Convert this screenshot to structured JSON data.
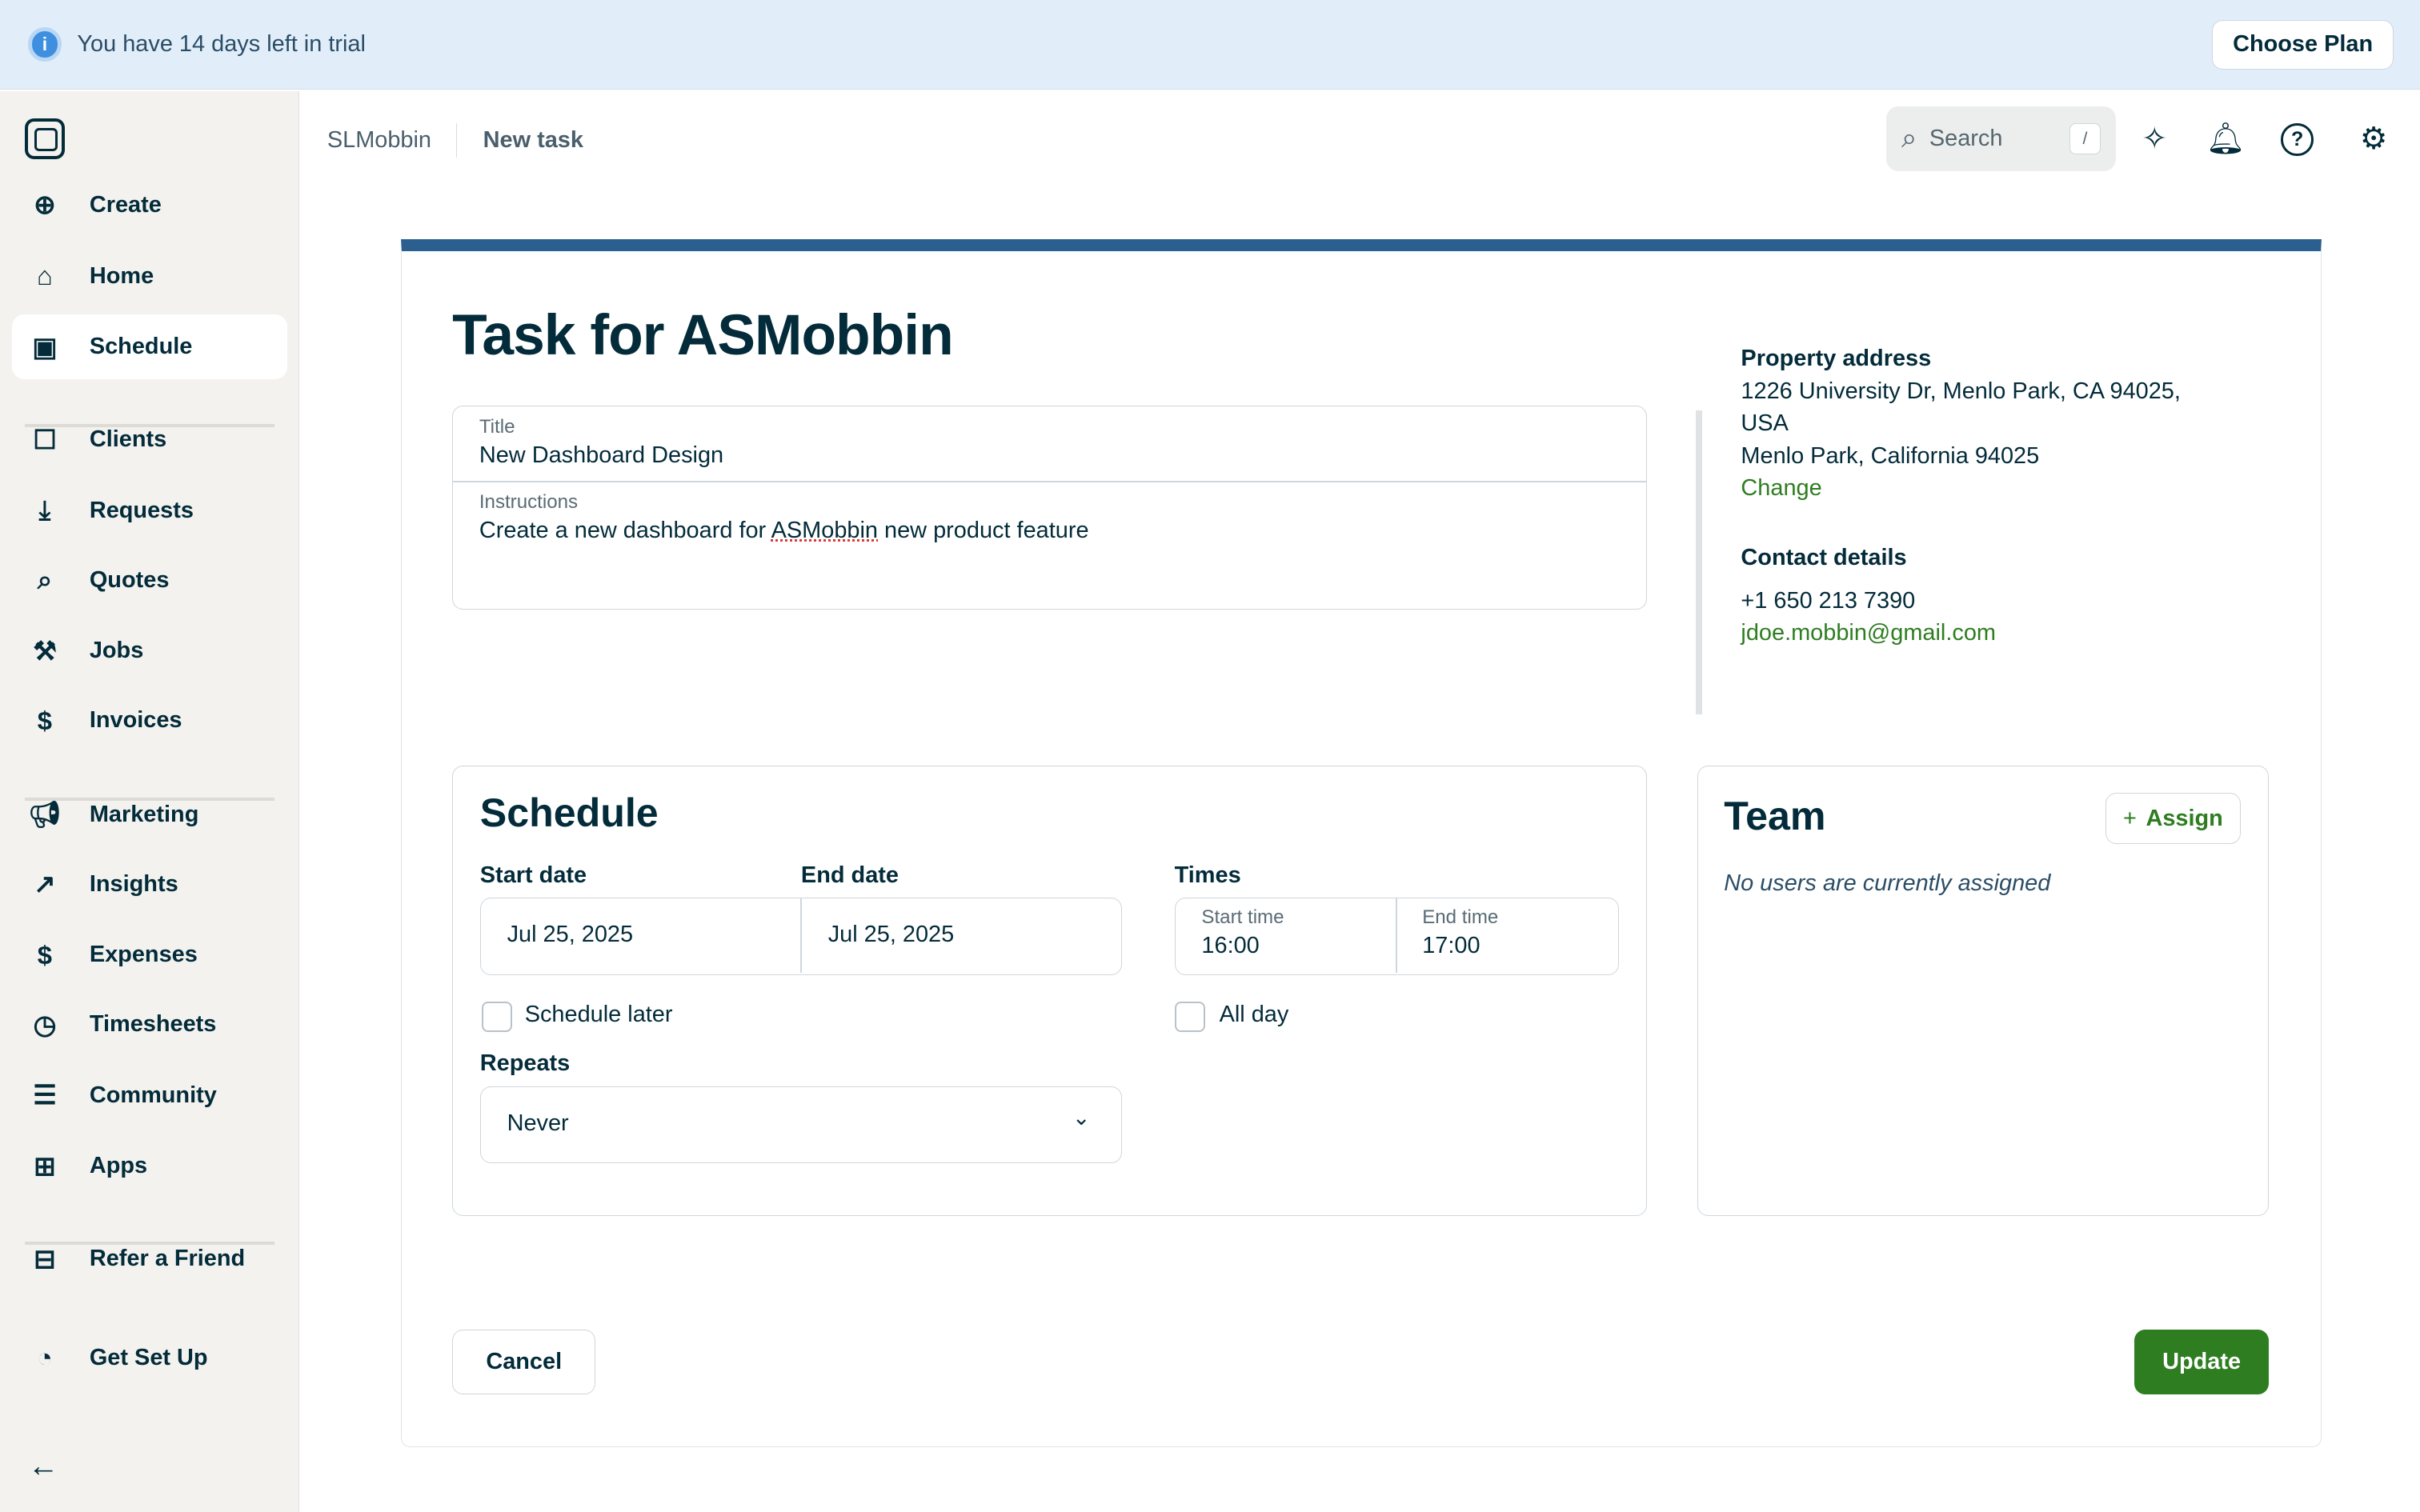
{
  "banner": {
    "text": "You have 14 days left in trial",
    "cta": "Choose Plan"
  },
  "sidebar": {
    "items": [
      {
        "label": "Create",
        "icon": "plus-circle-icon"
      },
      {
        "label": "Home",
        "icon": "home-icon"
      },
      {
        "label": "Schedule",
        "icon": "calendar-icon",
        "active": true
      },
      {
        "label": "Clients",
        "icon": "contact-icon"
      },
      {
        "label": "Requests",
        "icon": "inbox-icon"
      },
      {
        "label": "Quotes",
        "icon": "quote-icon"
      },
      {
        "label": "Jobs",
        "icon": "hammer-icon"
      },
      {
        "label": "Invoices",
        "icon": "invoice-icon"
      },
      {
        "label": "Marketing",
        "icon": "megaphone-icon"
      },
      {
        "label": "Insights",
        "icon": "chart-icon"
      },
      {
        "label": "Expenses",
        "icon": "receipt-icon"
      },
      {
        "label": "Timesheets",
        "icon": "clock-icon"
      },
      {
        "label": "Community",
        "icon": "chat-icon"
      },
      {
        "label": "Apps",
        "icon": "apps-icon"
      },
      {
        "label": "Refer a Friend",
        "icon": "gift-icon"
      },
      {
        "label": "Get Set Up",
        "icon": "progress-icon"
      }
    ]
  },
  "header": {
    "breadcrumb": [
      "SLMobbin",
      "New task"
    ],
    "search_placeholder": "Search",
    "search_shortcut": "/"
  },
  "task": {
    "heading": "Task for ASMobbin",
    "title_label": "Title",
    "title_value": "New Dashboard Design",
    "instructions_label": "Instructions",
    "instructions_pre": "Create a new dashboard for ",
    "instructions_misspelled": "ASMobbin",
    "instructions_post": " new product feature"
  },
  "property": {
    "heading": "Property address",
    "line1": "1226 University Dr, Menlo Park, CA 94025,",
    "line2": "USA",
    "line3": "Menlo Park, California 94025",
    "change": "Change"
  },
  "contact": {
    "heading": "Contact details",
    "phone": "+1 650 213 7390",
    "email": "jdoe.mobbin@gmail.com"
  },
  "schedule": {
    "heading": "Schedule",
    "start_label": "Start date",
    "start": "Jul 25, 2025",
    "end_label": "End date",
    "end": "Jul 25, 2025",
    "times_label": "Times",
    "start_time_label": "Start time",
    "start_time": "16:00",
    "end_time_label": "End time",
    "end_time": "17:00",
    "schedule_later": "Schedule later",
    "all_day": "All day",
    "repeats_label": "Repeats",
    "repeats": "Never"
  },
  "team": {
    "heading": "Team",
    "assign": "Assign",
    "empty": "No users are currently assigned"
  },
  "actions": {
    "cancel": "Cancel",
    "update": "Update"
  },
  "colors": {
    "accent": "#2e7d20",
    "top_bar": "#2a5f8f",
    "banner": "#e1eefa"
  }
}
